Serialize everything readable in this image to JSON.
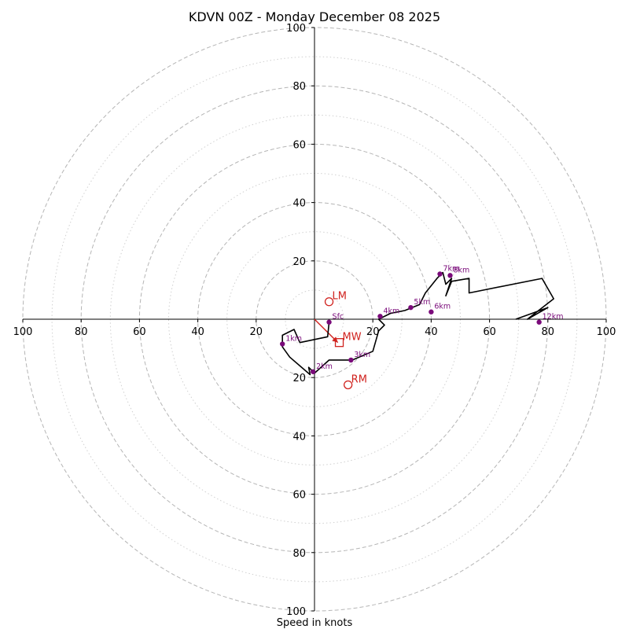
{
  "chart_data": {
    "type": "hodograph",
    "title": "KDVN 00Z - Monday December 08 2025",
    "xlabel": "Speed in knots",
    "units": "knots",
    "axis_range": [
      -100,
      100
    ],
    "rings_major": [
      10,
      30,
      50,
      70,
      90
    ],
    "rings_minor": [
      10,
      30,
      50,
      70,
      90
    ],
    "ring_guides_dashed": [
      20,
      40,
      60,
      80,
      100
    ],
    "ring_guides_dotted": [
      10,
      30,
      50,
      70,
      90
    ],
    "ticks": {
      "x": [
        {
          "value": -100,
          "label": "100"
        },
        {
          "value": -80,
          "label": "80"
        },
        {
          "value": -60,
          "label": "60"
        },
        {
          "value": -40,
          "label": "40"
        },
        {
          "value": -20,
          "label": "20"
        },
        {
          "value": 20,
          "label": "20"
        },
        {
          "value": 40,
          "label": "40"
        },
        {
          "value": 60,
          "label": "60"
        },
        {
          "value": 80,
          "label": "80"
        },
        {
          "value": 100,
          "label": "100"
        }
      ],
      "y": [
        {
          "value": 100,
          "label": "100"
        },
        {
          "value": 80,
          "label": "80"
        },
        {
          "value": 60,
          "label": "60"
        },
        {
          "value": 40,
          "label": "40"
        },
        {
          "value": 20,
          "label": "20"
        },
        {
          "value": -20,
          "label": "20"
        },
        {
          "value": -40,
          "label": "40"
        },
        {
          "value": -60,
          "label": "60"
        },
        {
          "value": -80,
          "label": "80"
        },
        {
          "value": -100,
          "label": "100"
        }
      ]
    },
    "hodograph_trace": [
      [
        5,
        -1
      ],
      [
        4.5,
        -6
      ],
      [
        -5,
        -8
      ],
      [
        -7,
        -3.5
      ],
      [
        -11,
        -5.5
      ],
      [
        -11,
        -9.5
      ],
      [
        -8.5,
        -13
      ],
      [
        -1.5,
        -19
      ],
      [
        -2,
        -16.5
      ],
      [
        0,
        -18.5
      ],
      [
        5,
        -14
      ],
      [
        13,
        -14
      ],
      [
        20,
        -11
      ],
      [
        22,
        -4
      ],
      [
        24,
        -2
      ],
      [
        22,
        0
      ],
      [
        26,
        2
      ],
      [
        31,
        3
      ],
      [
        36,
        5
      ],
      [
        38,
        9
      ],
      [
        42,
        14
      ],
      [
        44,
        16
      ],
      [
        45,
        12
      ],
      [
        46,
        13
      ],
      [
        47,
        14
      ],
      [
        45,
        8
      ],
      [
        47,
        13
      ],
      [
        53,
        14
      ],
      [
        53,
        9
      ],
      [
        78,
        14
      ],
      [
        82,
        7
      ],
      [
        73,
        0
      ],
      [
        80,
        4
      ],
      [
        69,
        0
      ]
    ],
    "height_labels": [
      {
        "label": "Sfc",
        "u": 5,
        "v": -1
      },
      {
        "label": "1km",
        "u": -11,
        "v": -8.5
      },
      {
        "label": "2km",
        "u": -0.5,
        "v": -18
      },
      {
        "label": "3km",
        "u": 12.5,
        "v": -14
      },
      {
        "label": "4km",
        "u": 22.5,
        "v": 1
      },
      {
        "label": "5km",
        "u": 33,
        "v": 4
      },
      {
        "label": "6km",
        "u": 40,
        "v": 2.5
      },
      {
        "label": "7km",
        "u": 43,
        "v": 15.5
      },
      {
        "label": "8km",
        "u": 46.5,
        "v": 15
      },
      {
        "label": "12km",
        "u": 77,
        "v": -1
      }
    ],
    "storm_motion": [
      {
        "label": "LM",
        "u": 5,
        "v": 6,
        "marker": "circle"
      },
      {
        "label": "MW",
        "u": 8.5,
        "v": -8,
        "marker": "square"
      },
      {
        "label": "RM",
        "u": 11.5,
        "v": -22.5,
        "marker": "circle"
      }
    ],
    "storm_vector": {
      "from": [
        0,
        0
      ],
      "to": [
        8,
        -8
      ]
    }
  },
  "colors": {
    "trace": "#000000",
    "height_marker": "#7a0a7a",
    "motion": "#d0221e",
    "grid": "#b5b5b5"
  }
}
